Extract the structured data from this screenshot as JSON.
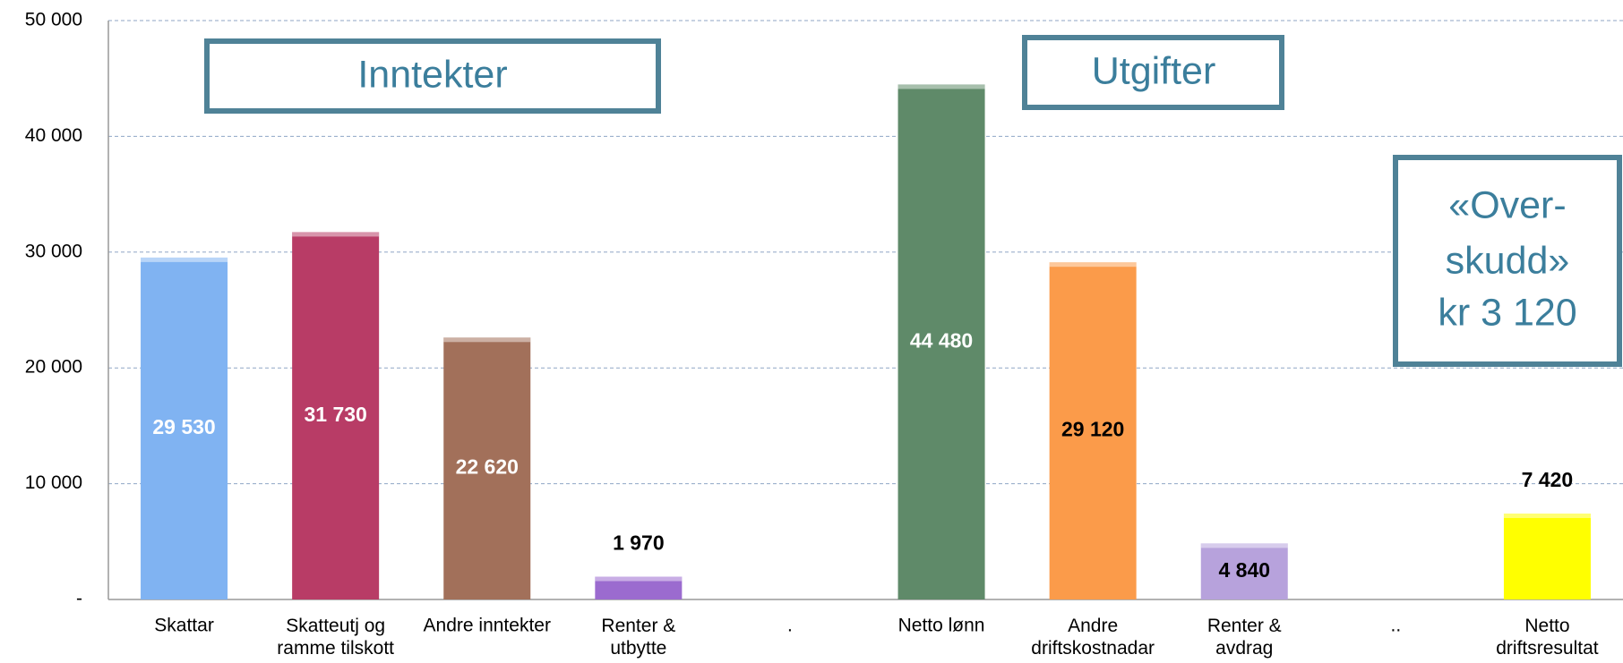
{
  "chart_data": {
    "type": "bar",
    "categories": [
      "Skattar",
      "Skatteutj og\nramme tilskott",
      "Andre inntekter",
      "Renter &\nutbytte",
      ".",
      "Netto lønn",
      "Andre\ndriftskostnadar",
      "Renter &\navdrag",
      "..",
      "Netto\ndriftsresultat"
    ],
    "values": [
      29530,
      31730,
      22620,
      1970,
      null,
      44480,
      29120,
      4840,
      null,
      7420
    ],
    "value_labels": [
      "29 530",
      "31 730",
      "22 620",
      "1 970",
      null,
      "44 480",
      "29 120",
      "4 840",
      null,
      "7 420"
    ],
    "colors": [
      "#80b3f2",
      "#b83c66",
      "#a2705a",
      "#9b6bcf",
      null,
      "#5f8a69",
      "#fb9b4a",
      "#b7a2dc",
      null,
      "#ffff00"
    ],
    "label_colors": [
      "#ffffff",
      "#ffffff",
      "#ffffff",
      "#000000",
      null,
      "#ffffff",
      "#000000",
      "#000000",
      null,
      "#000000"
    ],
    "label_position": [
      "inside",
      "inside",
      "inside",
      "above",
      null,
      "inside",
      "inside",
      "inside",
      null,
      "above"
    ],
    "ylim": [
      0,
      50000
    ],
    "yticks": [
      {
        "value": 0,
        "label": "-"
      },
      {
        "value": 10000,
        "label": "10 000"
      },
      {
        "value": 20000,
        "label": "20 000"
      },
      {
        "value": 30000,
        "label": "30 000"
      },
      {
        "value": 40000,
        "label": "40 000"
      },
      {
        "value": 50000,
        "label": "50 000"
      }
    ],
    "grid": true,
    "annotations": [
      {
        "lines": [
          "Inntekter"
        ]
      },
      {
        "lines": [
          "Utgifter"
        ]
      },
      {
        "lines": [
          "«Over-",
          "skudd»",
          "kr 3 120"
        ]
      }
    ]
  }
}
